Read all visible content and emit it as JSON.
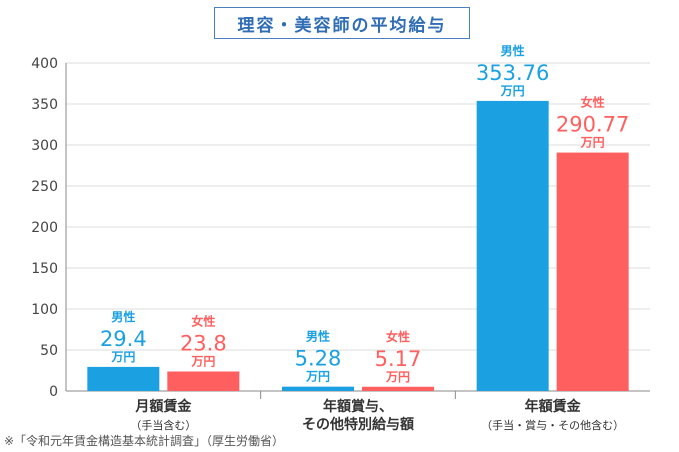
{
  "chart_data": {
    "type": "bar",
    "title": "理容・美容師の平均給与",
    "categories": [
      {
        "label": "月額賃金",
        "sublabel": "（手当含む）"
      },
      {
        "label": "年額賞与、",
        "sublabel": "その他特別給与額"
      },
      {
        "label": "年額賃金",
        "sublabel": "（手当・賞与・その他含む）"
      }
    ],
    "series": [
      {
        "name": "男性",
        "color": "#1ba1e2",
        "values": [
          29.4,
          5.28,
          353.76
        ],
        "value_labels": [
          "29.4",
          "5.28",
          "353.76"
        ]
      },
      {
        "name": "女性",
        "color": "#ff5f5f",
        "values": [
          23.8,
          5.17,
          290.77
        ],
        "value_labels": [
          "23.8",
          "5.17",
          "290.77"
        ]
      }
    ],
    "unit": "万円",
    "ylim": [
      0,
      400
    ],
    "yticks": [
      "0",
      "50",
      "100",
      "150",
      "200",
      "250",
      "300",
      "350",
      "400"
    ],
    "grid": true,
    "xlabel": "",
    "ylabel": ""
  },
  "footnote": "※「令和元年賃金構造基本統計調査」（厚生労働省）",
  "colors": {
    "grid": "#dddddd",
    "axis": "#888888",
    "text": "#333333",
    "title": "#2f6db5"
  }
}
